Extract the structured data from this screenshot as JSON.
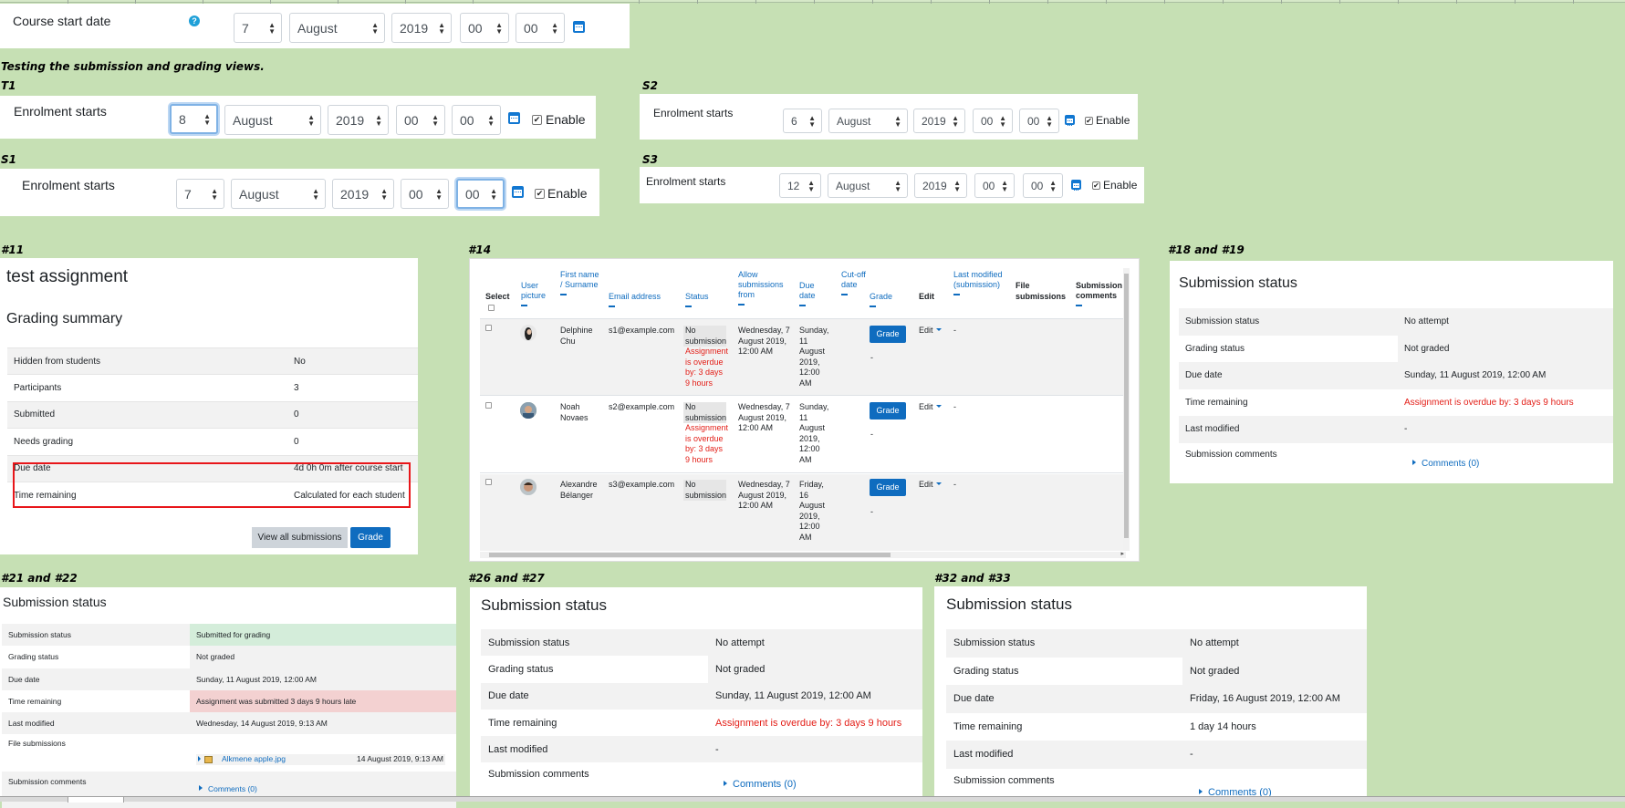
{
  "course_start": {
    "label": "Course start date",
    "help": "?",
    "day": "7",
    "month": "August",
    "year": "2019",
    "hour": "00",
    "minute": "00"
  },
  "testing_heading": "Testing the submission and grading views.",
  "t1": {
    "tag": "T1",
    "label": "Enrolment starts",
    "day": "8",
    "month": "August",
    "year": "2019",
    "hour": "00",
    "minute": "00",
    "enable": "Enable"
  },
  "s1": {
    "tag": "S1",
    "label": "Enrolment starts",
    "day": "7",
    "month": "August",
    "year": "2019",
    "hour": "00",
    "minute": "00",
    "enable": "Enable"
  },
  "s2": {
    "tag": "S2",
    "label": "Enrolment starts",
    "day": "6",
    "month": "August",
    "year": "2019",
    "hour": "00",
    "minute": "00",
    "enable": "Enable"
  },
  "s3": {
    "tag": "S3",
    "label": "Enrolment starts",
    "day": "12",
    "month": "August",
    "year": "2019",
    "hour": "00",
    "minute": "00",
    "enable": "Enable"
  },
  "p11": {
    "tag": "#11",
    "title": "test assignment",
    "summary_heading": "Grading summary",
    "rows": [
      {
        "k": "Hidden from students",
        "v": "No"
      },
      {
        "k": "Participants",
        "v": "3"
      },
      {
        "k": "Submitted",
        "v": "0"
      },
      {
        "k": "Needs grading",
        "v": "0"
      },
      {
        "k": "Due date",
        "v": "4d 0h 0m after course start"
      },
      {
        "k": "Time remaining",
        "v": "Calculated for each student"
      }
    ],
    "view_all": "View all submissions",
    "grade": "Grade"
  },
  "p14": {
    "tag": "#14",
    "headers": {
      "select": "Select",
      "user_picture": "User picture",
      "name": "First name / Surname",
      "email": "Email address",
      "status": "Status",
      "allow": "Allow submissions from",
      "due": "Due date",
      "cutoff": "Cut-off date",
      "grade": "Grade",
      "edit": "Edit",
      "last_modified": "Last modified (submission)",
      "files": "File submissions",
      "comments": "Submission comments"
    },
    "rows": [
      {
        "name": "Delphine Chu",
        "email": "s1@example.com",
        "status": "No submission",
        "overdue": "Assignment is overdue by: 3 days 9 hours",
        "allow": "Wednesday, 7 August 2019, 12:00 AM",
        "due": "Sunday, 11 August 2019, 12:00 AM",
        "grade_btn": "Grade",
        "grade_val": "-",
        "edit": "Edit",
        "lastmod": "-"
      },
      {
        "name": "Noah Novaes",
        "email": "s2@example.com",
        "status": "No submission",
        "overdue": "Assignment is overdue by: 3 days 9 hours",
        "allow": "Wednesday, 7 August 2019, 12:00 AM",
        "due": "Sunday, 11 August 2019, 12:00 AM",
        "grade_btn": "Grade",
        "grade_val": "-",
        "edit": "Edit",
        "lastmod": "-"
      },
      {
        "name": "Alexandre Bélanger",
        "email": "s3@example.com",
        "status": "No submission",
        "overdue": "",
        "allow": "Wednesday, 7 August 2019, 12:00 AM",
        "due": "Friday, 16 August 2019, 12:00 AM",
        "grade_btn": "Grade",
        "grade_val": "-",
        "edit": "Edit",
        "lastmod": "-"
      }
    ]
  },
  "p18": {
    "tag": "#18 and #19",
    "title": "Submission status",
    "rows": [
      {
        "k": "Submission status",
        "v": "No attempt"
      },
      {
        "k": "Grading status",
        "v": "Not graded"
      },
      {
        "k": "Due date",
        "v": "Sunday, 11 August 2019, 12:00 AM"
      },
      {
        "k": "Time remaining",
        "v": "Assignment is overdue by: 3 days 9 hours"
      },
      {
        "k": "Last modified",
        "v": "-"
      },
      {
        "k": "Submission comments",
        "v": "Comments (0)"
      }
    ]
  },
  "p21": {
    "tag": "#21 and #22",
    "title": "Submission status",
    "rows": [
      {
        "k": "Submission status",
        "v": "Submitted for grading"
      },
      {
        "k": "Grading status",
        "v": "Not graded"
      },
      {
        "k": "Due date",
        "v": "Sunday, 11 August 2019, 12:00 AM"
      },
      {
        "k": "Time remaining",
        "v": "Assignment was submitted 3 days 9 hours late"
      },
      {
        "k": "Last modified",
        "v": "Wednesday, 14 August 2019, 9:13 AM"
      },
      {
        "k": "File submissions",
        "v": "Alkmene apple.jpg",
        "date": "14 August 2019, 9:13 AM"
      },
      {
        "k": "Submission comments",
        "v": "Comments (0)"
      }
    ],
    "colors": {
      "submitted_bg": "#d4edda",
      "late_bg": "#f3d1d1"
    }
  },
  "p26": {
    "tag": "#26 and #27",
    "title": "Submission status",
    "rows": [
      {
        "k": "Submission status",
        "v": "No attempt"
      },
      {
        "k": "Grading status",
        "v": "Not graded"
      },
      {
        "k": "Due date",
        "v": "Sunday, 11 August 2019, 12:00 AM"
      },
      {
        "k": "Time remaining",
        "v": "Assignment is overdue by: 3 days 9 hours"
      },
      {
        "k": "Last modified",
        "v": "-"
      },
      {
        "k": "Submission comments",
        "v": "Comments (0)"
      }
    ]
  },
  "p32": {
    "tag": "#32 and #33",
    "title": "Submission status",
    "rows": [
      {
        "k": "Submission status",
        "v": "No attempt"
      },
      {
        "k": "Grading status",
        "v": "Not graded"
      },
      {
        "k": "Due date",
        "v": "Friday, 16 August 2019, 12:00 AM"
      },
      {
        "k": "Time remaining",
        "v": "1 day 14 hours"
      },
      {
        "k": "Last modified",
        "v": "-"
      },
      {
        "k": "Submission comments",
        "v": "Comments (0)"
      }
    ]
  },
  "colors": {
    "page_bg": "#c6e0b4",
    "brand": "#0f6cbf",
    "overdue": "#e31e17",
    "stripe": "#f2f2f2"
  }
}
